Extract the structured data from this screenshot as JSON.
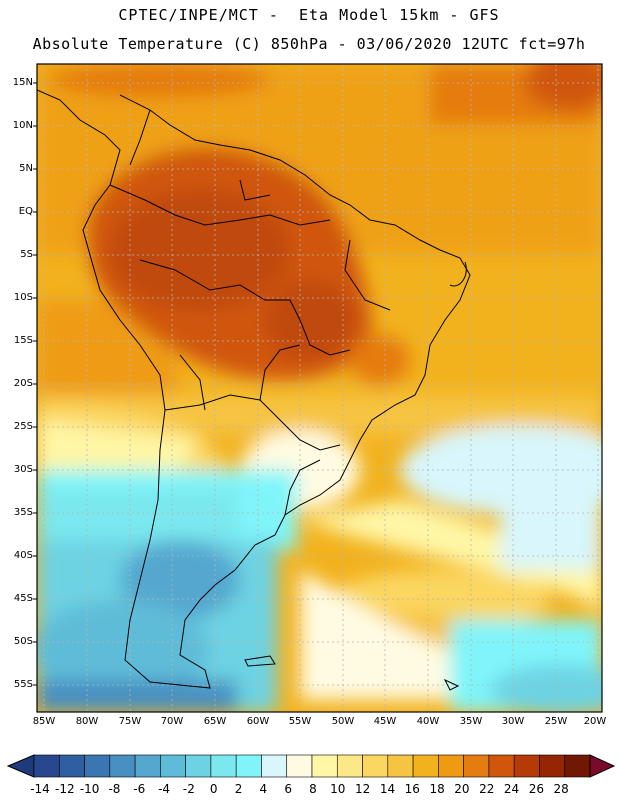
{
  "header": {
    "line1": "CPTEC/INPE/MCT -  Eta Model 15km - GFS",
    "line2": "Absolute Temperature (C) 850hPa - 03/06/2020 12UTC fct=97h"
  },
  "map": {
    "lat_labels": [
      "15N",
      "10N",
      "5N",
      "EQ",
      "5S",
      "10S",
      "15S",
      "20S",
      "25S",
      "30S",
      "35S",
      "40S",
      "45S",
      "50S",
      "55S"
    ],
    "lon_labels": [
      "85W",
      "80W",
      "75W",
      "70W",
      "65W",
      "60W",
      "55W",
      "50W",
      "45W",
      "40W",
      "35W",
      "30W",
      "25W",
      "20W"
    ]
  },
  "colorbar": {
    "labels": [
      "-14",
      "-12",
      "-10",
      "-8",
      "-6",
      "-4",
      "-2",
      "0",
      "2",
      "4",
      "6",
      "8",
      "10",
      "12",
      "14",
      "16",
      "18",
      "20",
      "22",
      "24",
      "26",
      "28"
    ],
    "colors": [
      "#27488f",
      "#2f5fa1",
      "#3a77b2",
      "#4790c2",
      "#55a7cf",
      "#5fbcd8",
      "#6dd3e3",
      "#7ae8ee",
      "#7ff5fa",
      "#d8f6fb",
      "#fffbe2",
      "#fff6a6",
      "#fde887",
      "#fbd761",
      "#f6c443",
      "#f2b21e",
      "#ef9b12",
      "#e57c10",
      "#d0560a",
      "#b63a06",
      "#952603",
      "#701802"
    ],
    "under_color": "#1d3a7a",
    "over_color": "#7a0a2a"
  }
}
